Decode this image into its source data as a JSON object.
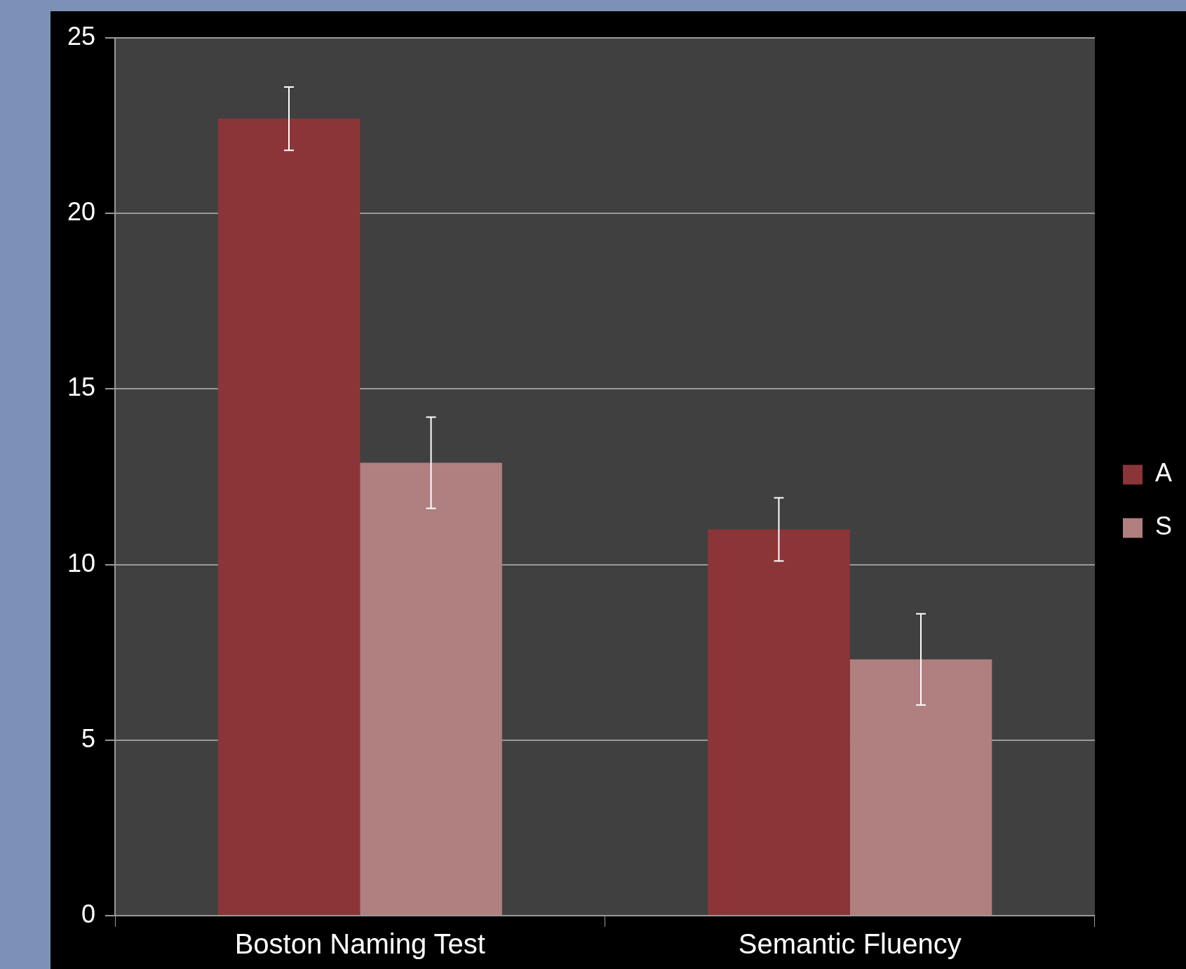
{
  "chart_data": {
    "type": "bar",
    "categories": [
      "Boston Naming Test",
      "Semantic Fluency"
    ],
    "series": [
      {
        "name": "A",
        "color": "#8b3538",
        "values": [
          22.7,
          11.0
        ],
        "errors": [
          0.9,
          0.9
        ]
      },
      {
        "name": "S",
        "color": "#b07f80",
        "values": [
          12.9,
          7.3
        ],
        "errors": [
          1.3,
          1.3
        ]
      }
    ],
    "ylim": [
      0,
      25
    ],
    "yticks": [
      0,
      5,
      10,
      15,
      20,
      25
    ],
    "grid": "y",
    "legend": "right"
  }
}
